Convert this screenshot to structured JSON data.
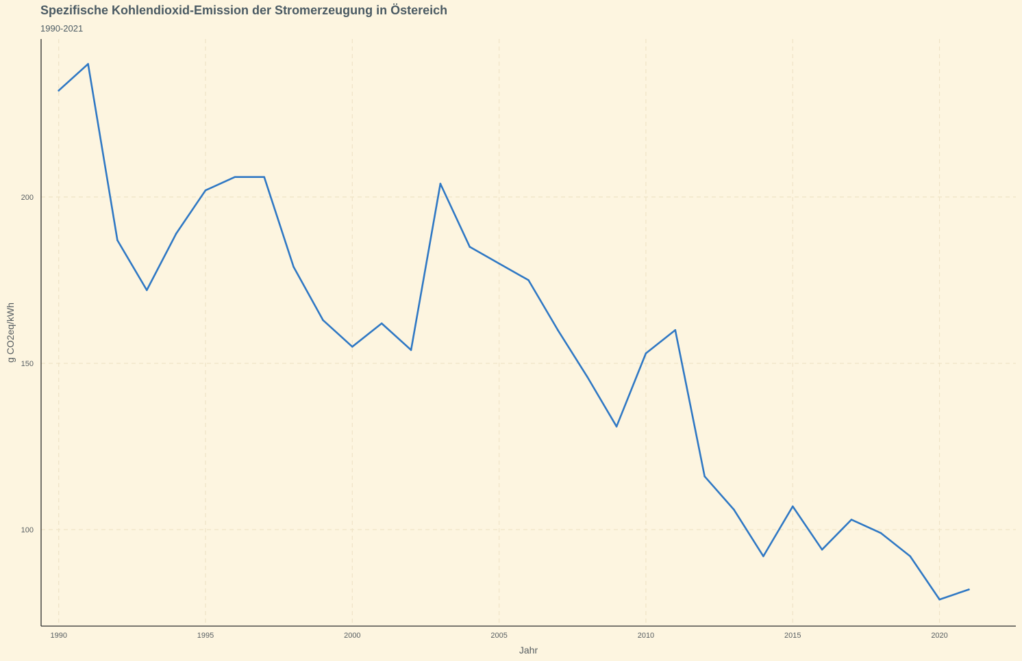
{
  "chart_data": {
    "type": "line",
    "title": "Spezifische Kohlendioxid-Emission der Stromerzeugung in Östereich",
    "subtitle": "1990-2021",
    "xlabel": "Jahr",
    "ylabel": "g CO2eq/kWh",
    "xlim": [
      1989.4,
      2022.6
    ],
    "ylim": [
      71,
      247.5
    ],
    "xticks": [
      1990,
      1995,
      2000,
      2005,
      2010,
      2015,
      2020
    ],
    "yticks": [
      100,
      150,
      200
    ],
    "grid": true,
    "colors": {
      "line": "#2f78c4",
      "grid": "#efe3c6",
      "axis": "#2b2b2b",
      "background": "#fdf5e0"
    },
    "series": [
      {
        "x": [
          1990,
          1991,
          1992,
          1993,
          1994,
          1995,
          1996,
          1997,
          1998,
          1999,
          2000,
          2001,
          2002,
          2003,
          2004,
          2005,
          2006,
          2007,
          2008,
          2009,
          2010,
          2011,
          2012,
          2013,
          2014,
          2015,
          2016,
          2017,
          2018,
          2019,
          2020,
          2021
        ],
        "y": [
          232,
          240,
          187,
          172,
          189,
          202,
          206,
          206,
          179,
          163,
          155,
          162,
          154,
          204,
          185,
          180,
          175,
          160,
          146,
          131,
          153,
          160,
          116,
          106,
          92,
          107,
          94,
          103,
          99,
          92,
          79,
          82
        ]
      }
    ]
  }
}
